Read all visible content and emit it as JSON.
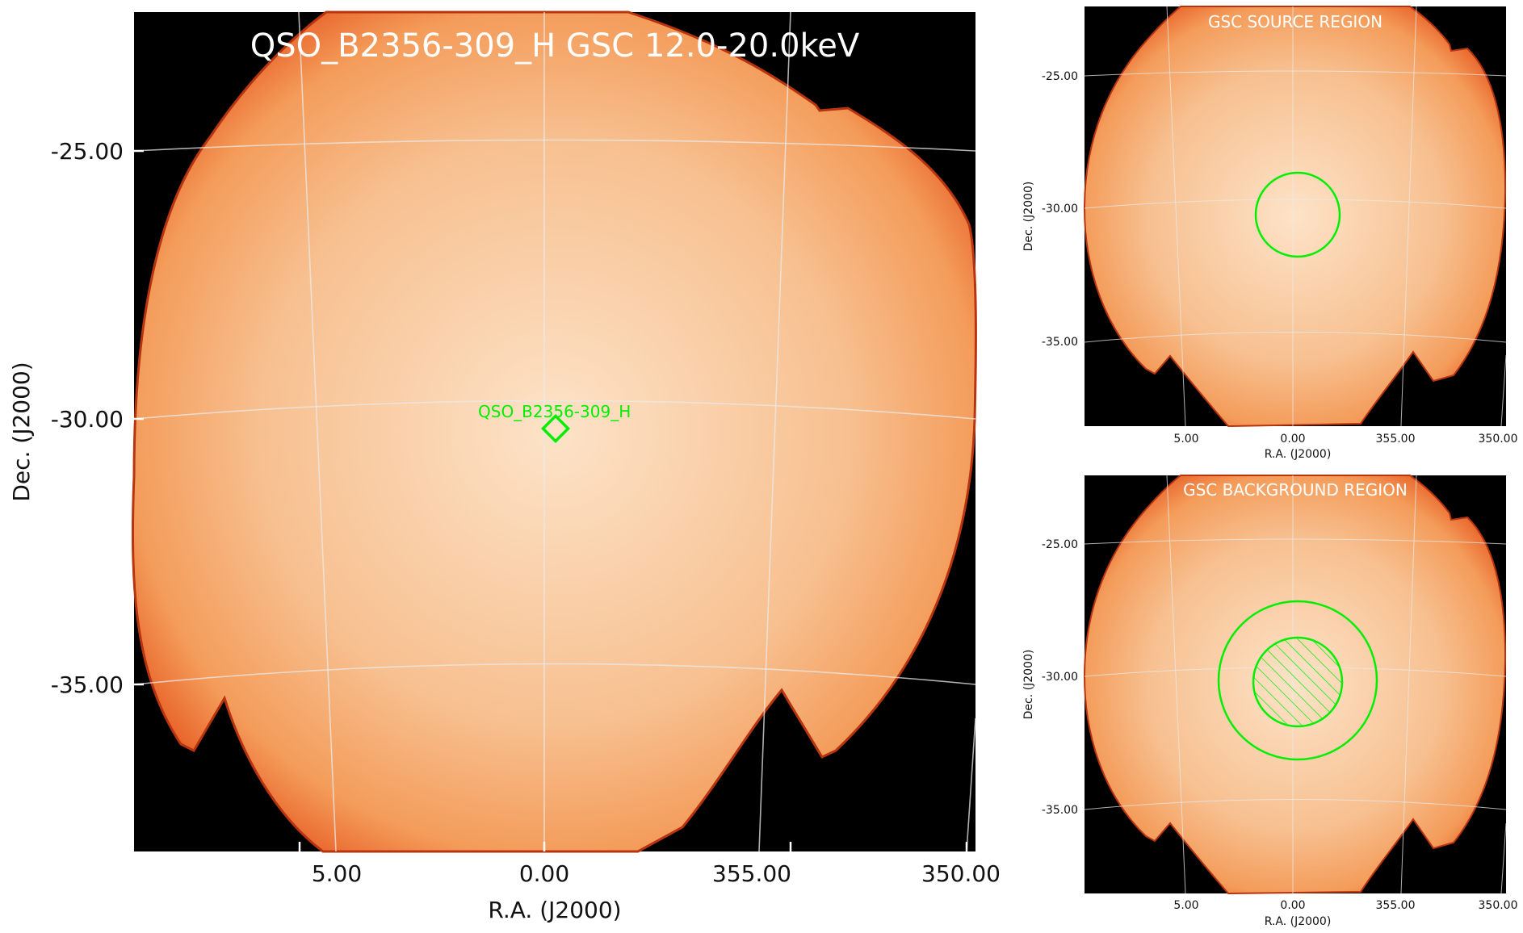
{
  "main_panel": {
    "title": "QSO_B2356-309_H GSC 12.0-20.0keV",
    "xlabel": "R.A. (J2000)",
    "ylabel": "Dec. (J2000)",
    "x_ticks": [
      "5.00",
      "0.00",
      "355.00",
      "350.00"
    ],
    "y_ticks": [
      "-25.00",
      "-30.00",
      "-35.00"
    ],
    "source_label": "QSO_B2356-309_H",
    "source_marker": "diamond-marker"
  },
  "source_panel": {
    "title": "GSC SOURCE REGION",
    "xlabel": "R.A. (J2000)",
    "ylabel": "Dec. (J2000)",
    "x_ticks": [
      "5.00",
      "0.00",
      "355.00",
      "350.00"
    ],
    "y_ticks": [
      "-25.00",
      "-30.00",
      "-35.00"
    ],
    "region": "source-circle"
  },
  "background_panel": {
    "title": "GSC BACKGROUND REGION",
    "xlabel": "R.A. (J2000)",
    "ylabel": "Dec. (J2000)",
    "x_ticks": [
      "5.00",
      "0.00",
      "355.00",
      "350.00"
    ],
    "y_ticks": [
      "-25.00",
      "-30.00",
      "-35.00"
    ],
    "region": "background-annulus-with-hatched-source-exclusion"
  },
  "colors": {
    "region": "#00ee00",
    "sky_background": "#000000",
    "exposure_center": "#fde3c8",
    "exposure_mid": "#f8b37c",
    "exposure_edge": "#e5541c",
    "grid": "#e9e9e9"
  }
}
